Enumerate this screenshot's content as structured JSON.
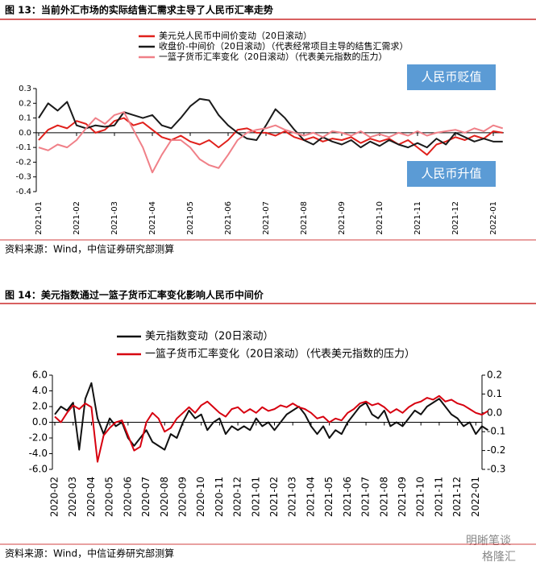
{
  "chart_data": [
    {
      "type": "line",
      "title": "图 13：当前外汇市场的实际结售汇需求主导了人民币汇率走势",
      "source": "资料来源：Wind，中信证券研究部测算",
      "categories": [
        "2021-01",
        null,
        null,
        null,
        "2021-02",
        null,
        null,
        null,
        "2021-03",
        null,
        null,
        null,
        "2021-04",
        null,
        null,
        null,
        "2021-05",
        null,
        null,
        null,
        "2021-06",
        null,
        null,
        null,
        "2021-07",
        null,
        null,
        null,
        "2021-08",
        null,
        null,
        null,
        "2021-09",
        null,
        null,
        null,
        "2021-10",
        null,
        null,
        null,
        "2021-11",
        null,
        null,
        null,
        "2021-12",
        null,
        null,
        null,
        "2022-01",
        null
      ],
      "series": [
        {
          "name": "美元兑人民币中间价变动（20日滚动）",
          "color": "#e0201b",
          "values": [
            -0.05,
            0.02,
            0.05,
            0.03,
            0.08,
            0.06,
            0.0,
            0.02,
            0.08,
            0.1,
            0.05,
            0.07,
            0.02,
            -0.03,
            -0.05,
            -0.02,
            -0.06,
            -0.08,
            -0.05,
            -0.1,
            -0.05,
            0.02,
            0.03,
            0.0,
            0.0,
            -0.02,
            0.01,
            -0.03,
            -0.05,
            -0.03,
            -0.06,
            -0.04,
            -0.05,
            -0.03,
            -0.07,
            -0.04,
            -0.06,
            -0.04,
            -0.08,
            -0.05,
            -0.1,
            -0.15,
            -0.08,
            -0.06,
            -0.03,
            -0.05,
            -0.02,
            -0.04,
            0.01,
            0.0
          ]
        },
        {
          "name": "收盘价-中间价（20日滚动）（代表经常项目主导的结售汇需求）",
          "color": "#1a1a1a",
          "values": [
            0.1,
            0.2,
            0.15,
            0.21,
            0.05,
            0.03,
            0.05,
            0.04,
            0.05,
            0.14,
            0.12,
            0.1,
            0.12,
            0.05,
            0.03,
            0.1,
            0.18,
            0.23,
            0.22,
            0.12,
            0.05,
            0.0,
            -0.04,
            -0.05,
            0.05,
            0.16,
            0.1,
            0.02,
            -0.05,
            -0.08,
            -0.03,
            -0.06,
            -0.08,
            -0.05,
            -0.1,
            -0.06,
            -0.09,
            -0.05,
            -0.08,
            -0.1,
            -0.07,
            -0.1,
            -0.04,
            -0.08,
            0.0,
            -0.03,
            -0.06,
            -0.04,
            -0.06,
            -0.06
          ]
        },
        {
          "name": "一篮子货币汇率变化（20日滚动）（代表美元指数的压力）",
          "color": "#f08088",
          "values": [
            -0.1,
            -0.12,
            -0.08,
            -0.1,
            -0.05,
            0.03,
            0.1,
            0.06,
            0.12,
            0.14,
            0.02,
            -0.1,
            -0.27,
            -0.15,
            -0.05,
            -0.05,
            -0.1,
            -0.18,
            -0.22,
            -0.24,
            -0.15,
            -0.05,
            0.0,
            0.02,
            0.03,
            0.05,
            0.02,
            0.0,
            -0.02,
            0.0,
            -0.03,
            0.01,
            0.0,
            -0.02,
            0.01,
            -0.03,
            -0.01,
            -0.03,
            0.0,
            -0.02,
            0.01,
            -0.02,
            0.0,
            0.01,
            0.02,
            0.0,
            0.03,
            0.01,
            0.05,
            0.03
          ]
        }
      ],
      "ylim": [
        -0.4,
        0.3
      ],
      "yticks": [
        0.3,
        0.2,
        0.1,
        {
          "value": 0,
          "label": "0.0"
        },
        -0.1,
        -0.2,
        -0.3,
        -0.4
      ],
      "annotations": [
        "人民币贬值",
        "人民币升值"
      ],
      "annotation_color": "#5b9bd5"
    },
    {
      "type": "line",
      "title": "图 14：美元指数通过一篮子货币汇率变化影响人民币中间价",
      "source": "资料来源：Wind，中信证券研究部测算",
      "categories": [
        "2020-02",
        null,
        null,
        "2020-03",
        null,
        null,
        "2020-04",
        null,
        null,
        "2020-05",
        null,
        null,
        "2020-06",
        null,
        null,
        "2020-07",
        null,
        null,
        "2020-08",
        null,
        null,
        "2020-09",
        null,
        null,
        "2020-10",
        null,
        null,
        "2020-11",
        null,
        null,
        "2020-12",
        null,
        null,
        "2021-01",
        null,
        null,
        "2021-02",
        null,
        null,
        "2021-03",
        null,
        null,
        "2021-04",
        null,
        null,
        "2021-05",
        null,
        null,
        "2021-06",
        null,
        null,
        "2021-07",
        null,
        null,
        "2021-08",
        null,
        null,
        "2021-09",
        null,
        null,
        "2021-10",
        null,
        null,
        "2021-11",
        null,
        null,
        "2021-12",
        null,
        null,
        "2022-01",
        null,
        null
      ],
      "series": [
        {
          "name": "美元指数变动（20日滚动）",
          "color": "#111111",
          "values": [
            1.0,
            2.0,
            1.5,
            2.5,
            -3.5,
            3.0,
            5.0,
            0.5,
            -1.5,
            0.5,
            -0.5,
            0.0,
            -2.0,
            -3.0,
            -2.0,
            -1.0,
            -2.5,
            -3.0,
            -3.5,
            -1.5,
            -2.0,
            0.0,
            1.5,
            0.5,
            1.0,
            -1.0,
            0.0,
            0.5,
            -1.5,
            -0.5,
            -1.0,
            -0.5,
            -1.0,
            0.5,
            -0.5,
            0.0,
            -1.0,
            0.0,
            1.0,
            1.5,
            2.0,
            1.0,
            -0.5,
            -1.5,
            -0.5,
            -2.0,
            -1.0,
            -1.5,
            0.0,
            1.0,
            2.0,
            2.5,
            1.0,
            0.5,
            1.5,
            -0.5,
            0.0,
            -0.5,
            0.5,
            1.5,
            1.0,
            2.0,
            2.5,
            3.0,
            2.0,
            1.0,
            0.5,
            -0.5,
            0.0,
            -1.5,
            -0.5,
            -1.0
          ]
        },
        {
          "name": "一篮子货币汇率变化（20日滚动）（代表美元指数的压力）",
          "color": "#d7000f",
          "axis": "y2",
          "values": [
            -0.02,
            -0.05,
            0.0,
            0.04,
            0.02,
            0.05,
            0.03,
            -0.26,
            -0.12,
            -0.08,
            -0.05,
            -0.04,
            -0.12,
            -0.2,
            -0.18,
            -0.05,
            0.0,
            -0.03,
            -0.1,
            -0.08,
            -0.03,
            0.0,
            0.03,
            0.0,
            0.04,
            0.06,
            0.03,
            0.0,
            -0.02,
            0.02,
            0.03,
            0.0,
            0.02,
            0.0,
            0.03,
            0.01,
            0.02,
            0.04,
            0.03,
            0.05,
            0.03,
            0.02,
            0.0,
            -0.03,
            -0.02,
            -0.05,
            -0.03,
            -0.04,
            0.0,
            0.02,
            0.05,
            0.06,
            0.04,
            0.05,
            0.03,
            0.0,
            0.02,
            0.0,
            0.03,
            0.05,
            0.06,
            0.08,
            0.07,
            0.09,
            0.06,
            0.07,
            0.05,
            0.04,
            0.02,
            0.0,
            -0.01,
            0.01
          ]
        }
      ],
      "ylim": [
        -6,
        6
      ],
      "yticks": [
        {
          "value": 6,
          "label": "6.0"
        },
        {
          "value": 4,
          "label": "4.0"
        },
        {
          "value": 2,
          "label": "2.0"
        },
        {
          "value": 0,
          "label": "0.0"
        },
        {
          "value": -2,
          "label": "-2.0"
        },
        {
          "value": -4,
          "label": "-4.0"
        },
        {
          "value": -6,
          "label": "-6.0"
        }
      ],
      "y2lim": [
        -0.3,
        0.2
      ],
      "y2ticks": [
        0.2,
        0.1,
        {
          "value": 0,
          "label": "0.0"
        },
        -0.1,
        -0.2,
        -0.3
      ]
    }
  ],
  "watermark": [
    "明晰笔谈",
    "格隆汇"
  ]
}
